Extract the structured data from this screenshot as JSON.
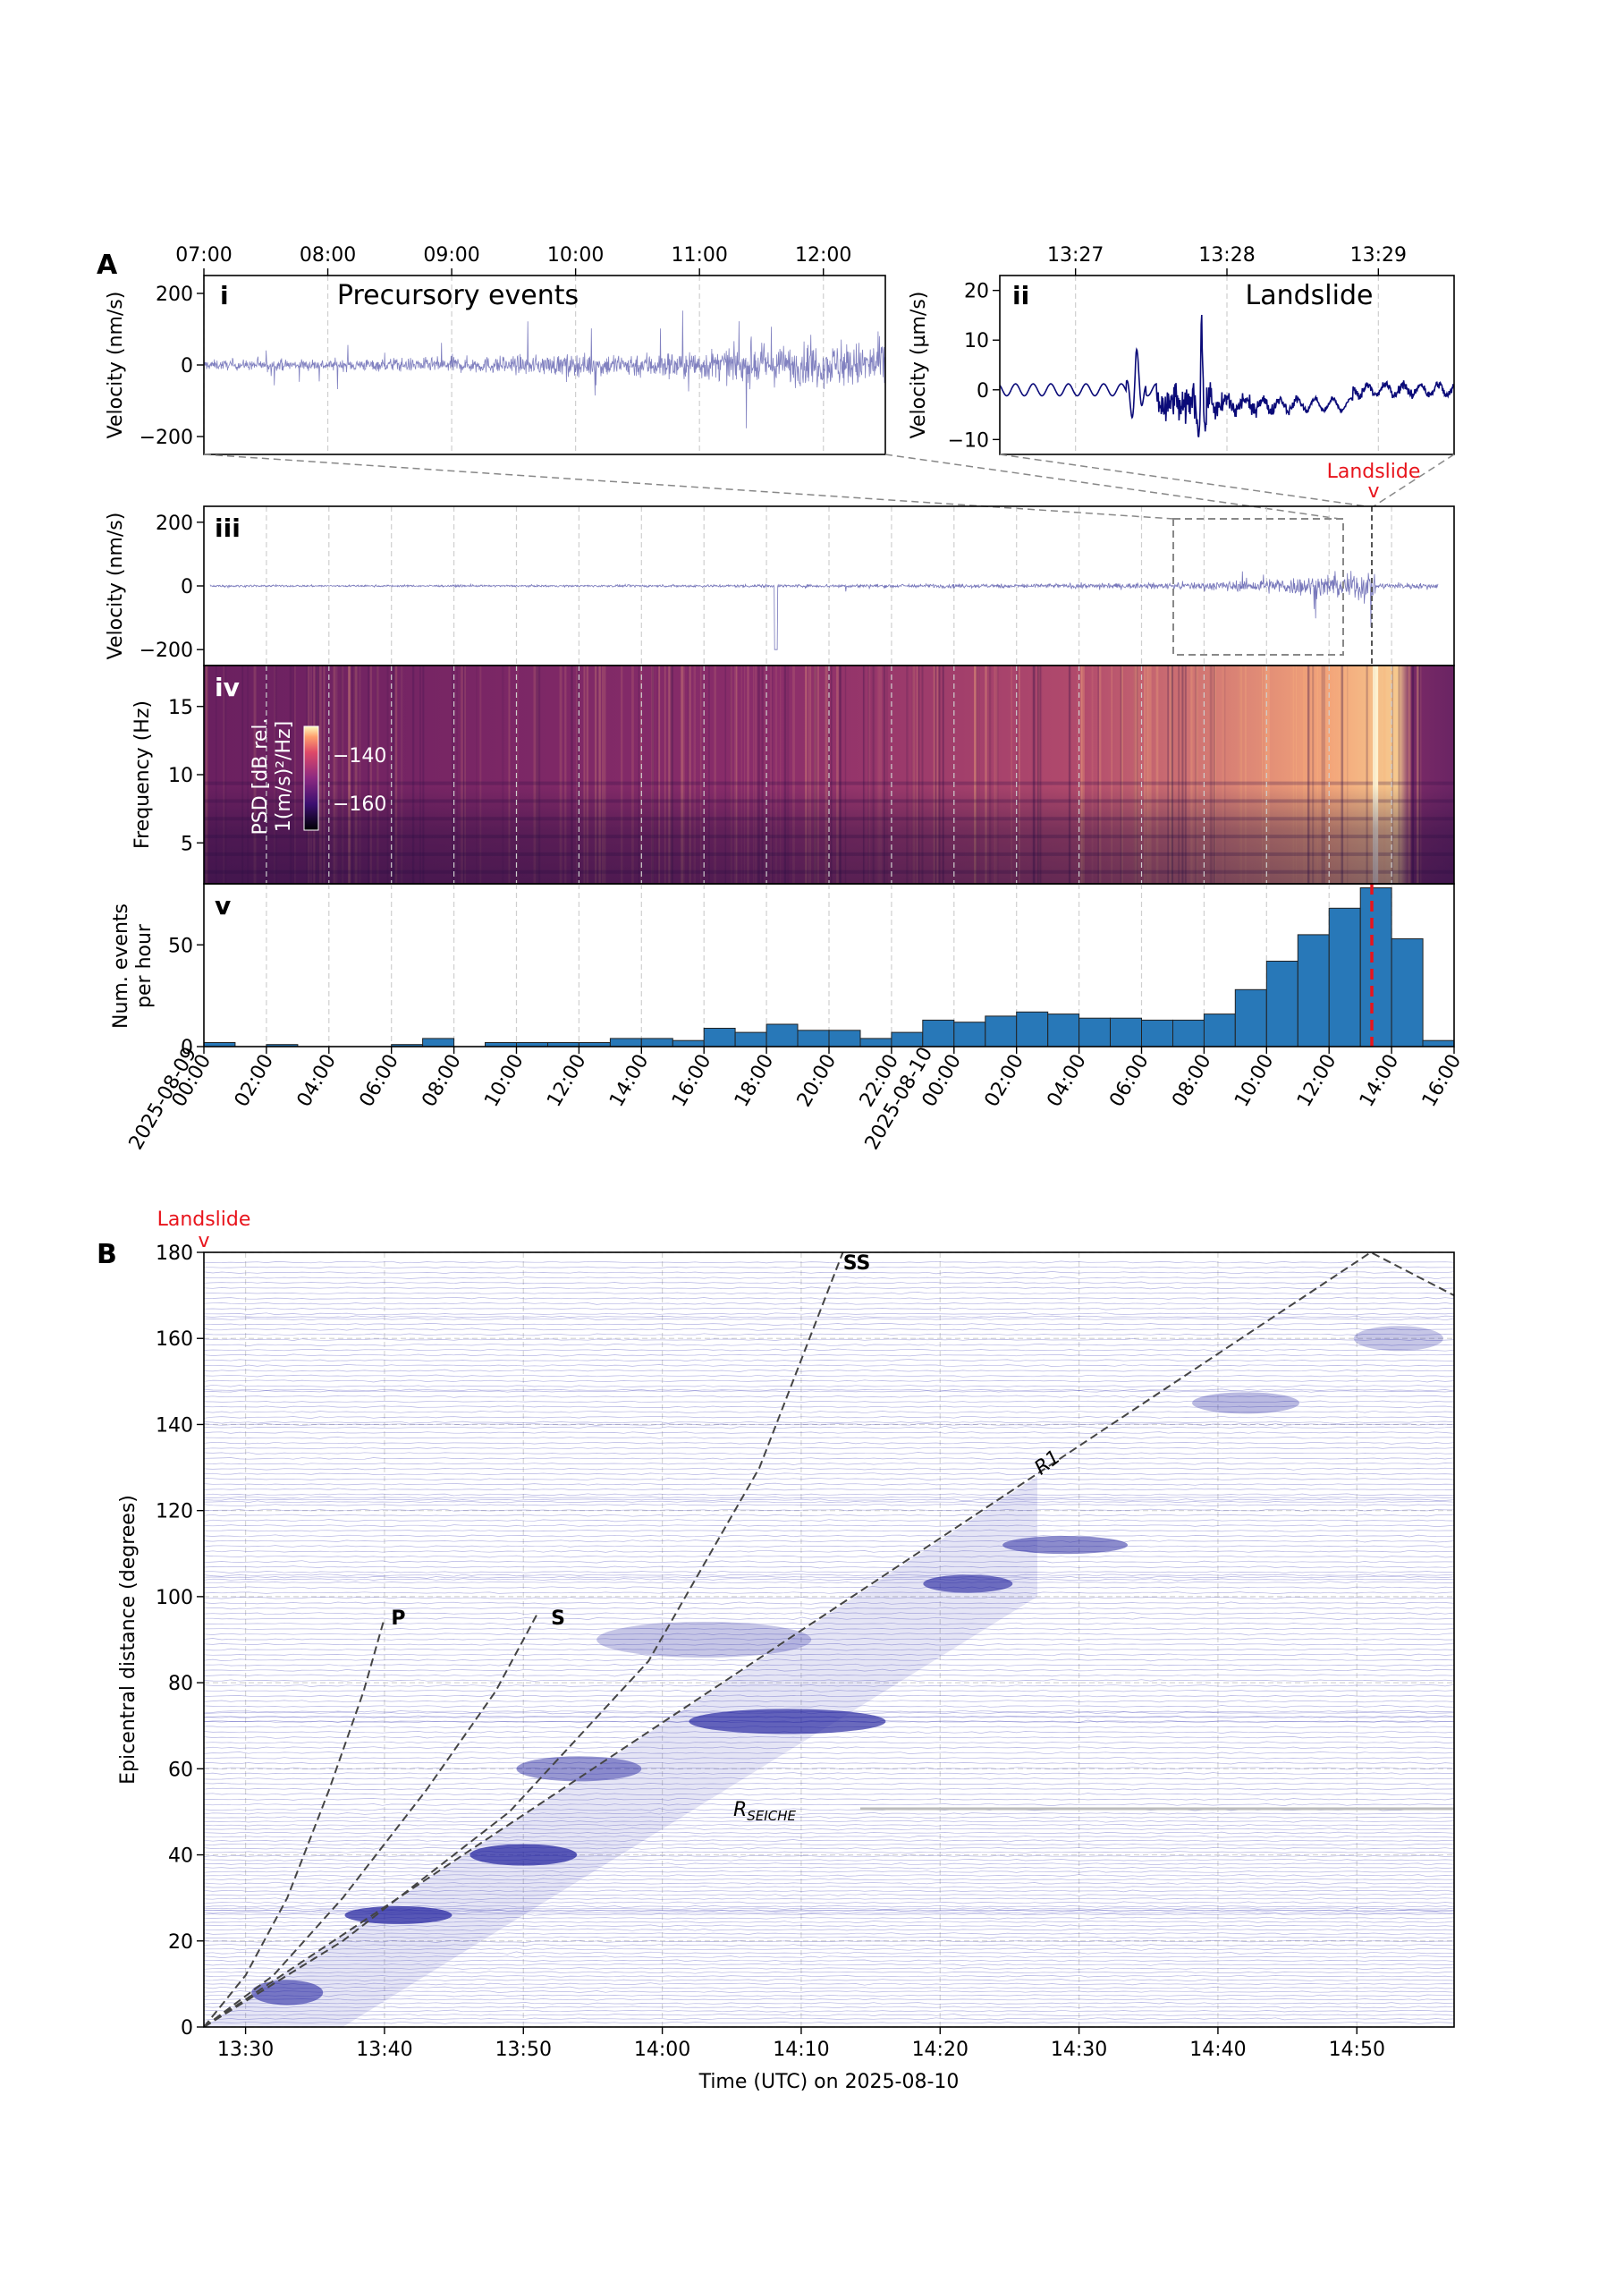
{
  "panel_letters": {
    "A": "A",
    "B": "B"
  },
  "panels": {
    "i": {
      "num": "i",
      "title": "Precursory events",
      "ylabel": "Velocity (nm/s)",
      "xticks": [
        "07:00",
        "08:00",
        "09:00",
        "10:00",
        "11:00",
        "12:00"
      ],
      "yticks": [
        "200",
        "0",
        "−200"
      ]
    },
    "ii": {
      "num": "ii",
      "title": "Landslide",
      "ylabel": "Velocity (µm/s)",
      "xticks": [
        "13:27",
        "13:28",
        "13:29"
      ],
      "yticks": [
        "20",
        "10",
        "0",
        "−10"
      ]
    },
    "iii": {
      "num": "iii",
      "ylabel": "Velocity (nm/s)",
      "yticks": [
        "200",
        "0",
        "−200"
      ],
      "landslide_label": "Landslide",
      "marker": "v"
    },
    "iv": {
      "num": "iv",
      "ylabel": "Frequency (Hz)",
      "yticks": [
        "15",
        "10",
        "5"
      ],
      "colorbar_label_1": "PSD [dB rel.",
      "colorbar_label_2": "1(m/s)²/Hz]",
      "colorbar_ticks": [
        "−140",
        "−160"
      ],
      "colors": {
        "low": "#0b0724",
        "mid": "#8a2f6c",
        "high": "#fcefc0"
      }
    },
    "v": {
      "num": "v",
      "ylabel_1": "Num. events",
      "ylabel_2": "per hour",
      "yticks": [
        "50",
        "0"
      ],
      "xticks": [
        "00:00",
        "02:00",
        "04:00",
        "06:00",
        "08:00",
        "10:00",
        "12:00",
        "14:00",
        "16:00",
        "18:00",
        "20:00",
        "22:00",
        "00:00",
        "02:00",
        "04:00",
        "06:00",
        "08:00",
        "10:00",
        "12:00",
        "14:00",
        "16:00"
      ],
      "date_labels": [
        "2025-08-09",
        "2025-08-10"
      ]
    }
  },
  "chart_data": [
    {
      "type": "line",
      "panel": "i",
      "xlabel": "",
      "ylabel": "Velocity (nm/s)",
      "ylim": [
        -250,
        250
      ],
      "x_range": [
        "07:00",
        "12:30"
      ],
      "series": [
        {
          "color": "#1a1a8c"
        }
      ]
    },
    {
      "type": "line",
      "panel": "ii",
      "xlabel": "",
      "ylabel": "Velocity (µm/s)",
      "ylim": [
        -13,
        23
      ],
      "x_range": [
        "13:26:30",
        "13:29:30"
      ],
      "series": [
        {
          "color": "#0a0a78"
        }
      ]
    },
    {
      "type": "line",
      "panel": "iii",
      "ylabel": "Velocity (nm/s)",
      "ylim": [
        -250,
        250
      ],
      "x_range": [
        "2025-08-09 00:00",
        "2025-08-10 16:00"
      ]
    },
    {
      "type": "heatmap",
      "panel": "iv",
      "ylabel": "Frequency (Hz)",
      "ylim": [
        2,
        18
      ],
      "clim": [
        -165,
        -130
      ]
    },
    {
      "type": "bar",
      "panel": "v",
      "ylabel": "Num. events per hour",
      "ylim": [
        0,
        80
      ],
      "x_start": "2025-08-09 00:00",
      "bin_hours": 1,
      "values": [
        2,
        0,
        1,
        0,
        0,
        0,
        1,
        4,
        0,
        2,
        2,
        2,
        2,
        4,
        4,
        3,
        9,
        7,
        11,
        8,
        8,
        4,
        7,
        13,
        12,
        15,
        17,
        16,
        14,
        14,
        13,
        13,
        16,
        28,
        42,
        55,
        68,
        78,
        53,
        3
      ],
      "landslide_time": "2025-08-10 13:30",
      "color": "#2878b8"
    },
    {
      "type": "line",
      "panel": "B",
      "xlabel": "Time (UTC) on 2025-08-10",
      "ylabel": "Epicentral distance (degrees)",
      "xlim": [
        "13:27",
        "14:57"
      ],
      "ylim": [
        0,
        180
      ],
      "xticks": [
        "13:30",
        "13:40",
        "13:50",
        "14:00",
        "14:10",
        "14:20",
        "14:30",
        "14:40",
        "14:50"
      ],
      "yticks": [
        0,
        20,
        40,
        60,
        80,
        100,
        120,
        140,
        160,
        180
      ],
      "phases": [
        {
          "label": "P",
          "points": [
            [
              0,
              0
            ],
            [
              3,
              12
            ],
            [
              6,
              30
            ],
            [
              9,
              55
            ],
            [
              11.5,
              78
            ],
            [
              13,
              95
            ]
          ]
        },
        {
          "label": "S",
          "points": [
            [
              0,
              0
            ],
            [
              5,
              12
            ],
            [
              10,
              30
            ],
            [
              16,
              55
            ],
            [
              21,
              78
            ],
            [
              24,
              96
            ]
          ]
        },
        {
          "label": "SS",
          "points": [
            [
              0,
              0
            ],
            [
              10,
              20
            ],
            [
              22,
              50
            ],
            [
              32,
              85
            ],
            [
              40,
              130
            ],
            [
              46,
              180
            ]
          ]
        },
        {
          "label": "R1",
          "points": [
            [
              0,
              0
            ],
            [
              84,
              180
            ],
            [
              90,
              170
            ]
          ]
        }
      ],
      "annotations": [
        {
          "label": "R",
          "sub": "SEICHE"
        }
      ],
      "landslide_label": "Landslide",
      "marker": "v"
    }
  ]
}
